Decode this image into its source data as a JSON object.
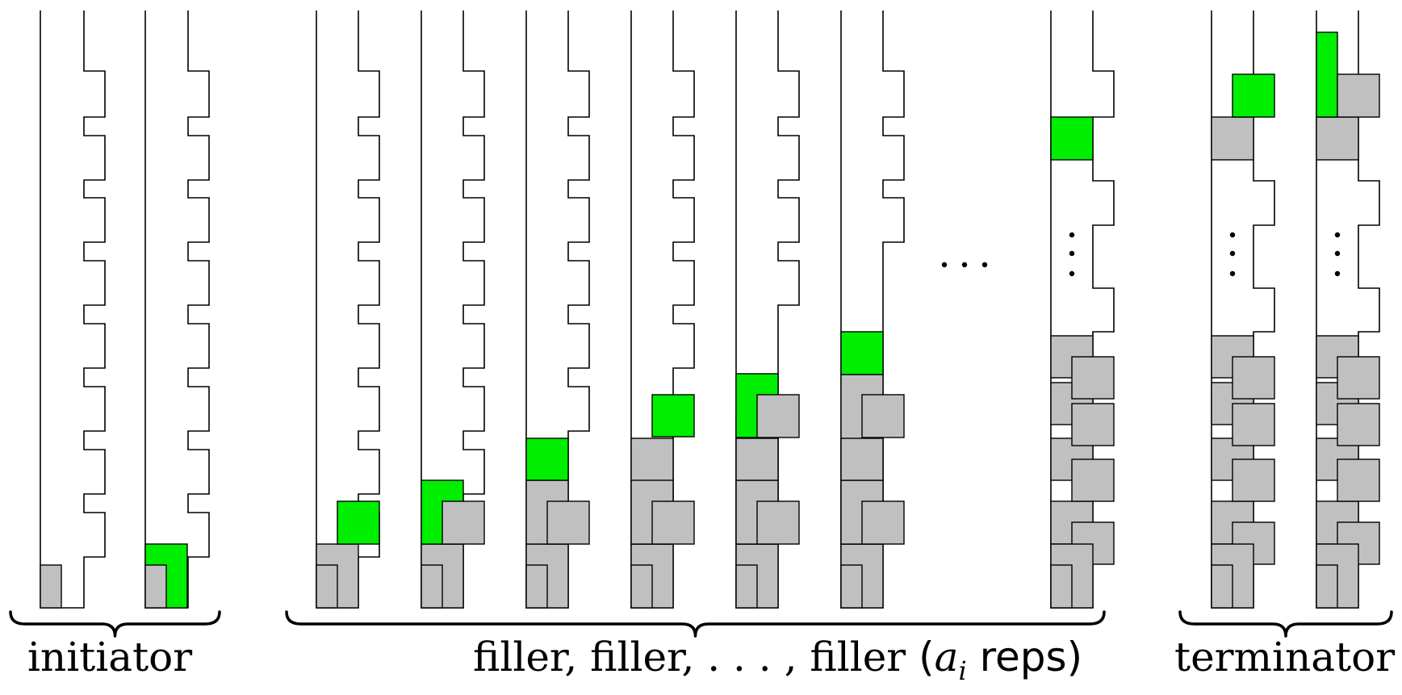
{
  "labels": {
    "initiator": "initiator",
    "filler": "filler, filler, . . . , filler",
    "reps_open": "(",
    "reps_var": "a",
    "reps_sub": "i",
    "reps_word": " reps)",
    "terminator": "terminator"
  },
  "colors": {
    "gray": "#c0c0c0",
    "green": "#00ee00",
    "stroke": "#000000"
  },
  "structure": {
    "initiator_columns": 2,
    "filler_columns_shown": 6,
    "filler_final_column": 1,
    "terminator_columns": 2,
    "ellipsis": "horizontal-dots",
    "column_gaps": "vertical-dots"
  }
}
